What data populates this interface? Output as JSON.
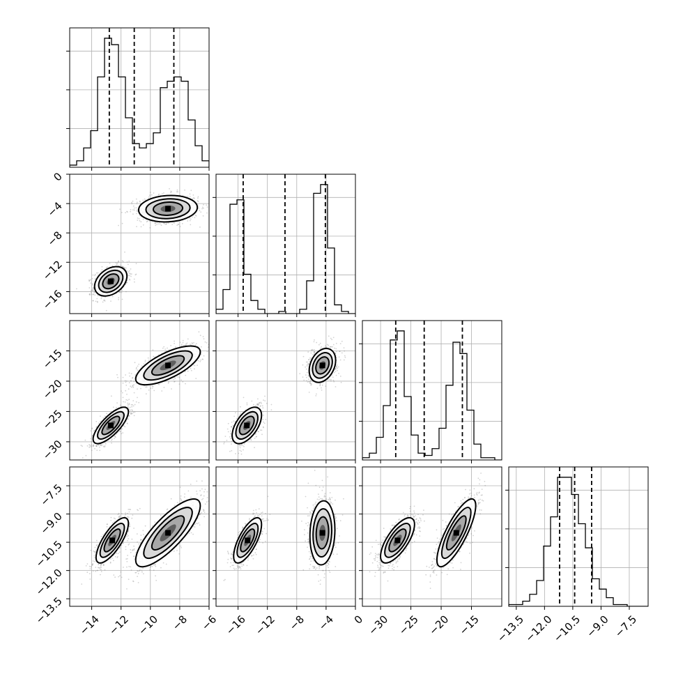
{
  "chart_data": {
    "type": "corner",
    "title": "",
    "grid": true,
    "parameters": [
      {
        "index": 0,
        "label": "",
        "range": [
          -15.5,
          -6
        ],
        "ticks": [
          -14,
          -12,
          -10,
          -8,
          -6
        ],
        "tick_labels": [
          "−14",
          "−12",
          "−10",
          "−8",
          "−6"
        ],
        "quantiles": [
          -12.8,
          -11.1,
          -8.4
        ]
      },
      {
        "index": 1,
        "label": "",
        "range": [
          -19,
          0
        ],
        "ticks": [
          -16,
          -12,
          -8,
          -4,
          0
        ],
        "tick_labels": [
          "−16",
          "−12",
          "−8",
          "−4",
          "0"
        ],
        "quantiles": [
          -15.3,
          -9.6,
          -4.1
        ]
      },
      {
        "index": 2,
        "label": "",
        "range": [
          -33,
          -10
        ],
        "ticks": [
          -30,
          -25,
          -20,
          -15
        ],
        "tick_labels": [
          "−30",
          "−25",
          "−20",
          "−15"
        ],
        "quantiles": [
          -27.5,
          -22.8,
          -16.5
        ]
      },
      {
        "index": 3,
        "label": "",
        "range": [
          -13.9,
          -6.5
        ],
        "ticks": [
          -13.5,
          -12.0,
          -10.5,
          -9.0,
          -7.5
        ],
        "tick_labels": [
          "−13.5",
          "−12.0",
          "−10.5",
          "−9.0",
          "−7.5"
        ],
        "quantiles": [
          -11.2,
          -10.4,
          -9.5
        ]
      }
    ],
    "histograms": [
      {
        "param": 0,
        "bin_start": -15.5,
        "bin_width": 0.475,
        "counts": [
          1,
          3,
          9,
          17,
          42,
          60,
          57,
          42,
          23,
          11,
          9,
          11,
          16,
          37,
          40,
          42,
          40,
          22,
          10,
          3
        ]
      },
      {
        "param": 1,
        "bin_start": -19,
        "bin_width": 0.95,
        "counts": [
          2,
          11,
          50,
          52,
          18,
          6,
          2,
          0,
          0,
          1,
          0,
          0,
          2,
          15,
          55,
          59,
          30,
          4,
          1,
          0
        ]
      },
      {
        "param": 2,
        "bin_start": -33,
        "bin_width": 1.15,
        "counts": [
          1,
          3,
          10,
          24,
          53,
          57,
          28,
          11,
          3,
          2,
          5,
          14,
          33,
          52,
          47,
          22,
          7,
          1,
          1,
          0
        ]
      },
      {
        "param": 3,
        "bin_start": -13.9,
        "bin_width": 0.37,
        "counts": [
          1,
          1,
          3,
          7,
          15,
          35,
          52,
          75,
          75,
          65,
          48,
          34,
          16,
          10,
          5,
          1,
          1,
          0,
          0,
          0
        ]
      }
    ],
    "density_panels": [
      {
        "x_param": 0,
        "y_param": 1,
        "modes": [
          {
            "x": -12.7,
            "y": -14.6,
            "sx": 0.55,
            "sy": 1.0,
            "rho": 0.35,
            "weight": 0.5
          },
          {
            "x": -8.8,
            "y": -4.7,
            "sx": 1.0,
            "sy": 0.9,
            "rho": 0.1,
            "weight": 0.5
          }
        ]
      },
      {
        "x_param": 0,
        "y_param": 2,
        "modes": [
          {
            "x": -12.7,
            "y": -27.3,
            "sx": 0.6,
            "sy": 1.5,
            "rho": 0.75,
            "weight": 0.5
          },
          {
            "x": -8.8,
            "y": -17.4,
            "sx": 1.1,
            "sy": 1.6,
            "rho": 0.7,
            "weight": 0.5
          }
        ]
      },
      {
        "x_param": 0,
        "y_param": 3,
        "modes": [
          {
            "x": -12.6,
            "y": -10.4,
            "sx": 0.55,
            "sy": 0.6,
            "rho": 0.75,
            "weight": 0.5
          },
          {
            "x": -8.8,
            "y": -10.0,
            "sx": 1.1,
            "sy": 0.9,
            "rho": 0.8,
            "weight": 0.5
          }
        ]
      },
      {
        "x_param": 1,
        "y_param": 2,
        "modes": [
          {
            "x": -14.8,
            "y": -27.3,
            "sx": 1.0,
            "sy": 1.5,
            "rho": 0.55,
            "weight": 0.5
          },
          {
            "x": -4.5,
            "y": -17.4,
            "sx": 0.9,
            "sy": 1.4,
            "rho": 0.3,
            "weight": 0.5
          }
        ]
      },
      {
        "x_param": 1,
        "y_param": 3,
        "modes": [
          {
            "x": -14.7,
            "y": -10.4,
            "sx": 0.95,
            "sy": 0.6,
            "rho": 0.7,
            "weight": 0.5
          },
          {
            "x": -4.5,
            "y": -10.0,
            "sx": 0.85,
            "sy": 0.85,
            "rho": 0.1,
            "weight": 0.5
          }
        ]
      },
      {
        "x_param": 2,
        "y_param": 3,
        "modes": [
          {
            "x": -27.2,
            "y": -10.4,
            "sx": 1.4,
            "sy": 0.6,
            "rho": 0.7,
            "weight": 0.5
          },
          {
            "x": -17.5,
            "y": -10.0,
            "sx": 1.6,
            "sy": 0.9,
            "rho": 0.8,
            "weight": 0.5
          }
        ]
      }
    ],
    "colors": {
      "frame": "#000000",
      "grid": "#b0b0b0",
      "points": "#7f7f7f",
      "contour": "#000000",
      "density_high": "#000000"
    }
  }
}
